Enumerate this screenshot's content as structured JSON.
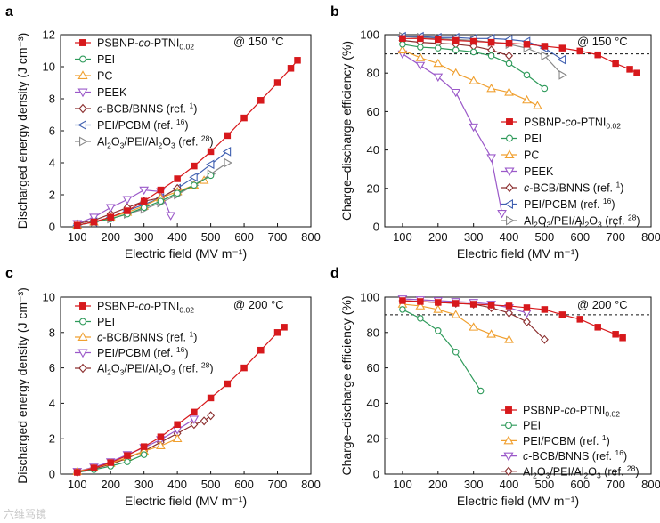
{
  "figure": {
    "watermark": "六维骂镜"
  },
  "colors": {
    "PSBNP": "#d7191c",
    "PEI": "#2e9a5a",
    "PC": "#f0a030",
    "PEEK": "#9b59c9",
    "cBCB": "#8b2e2e",
    "PEIPCBM": "#3f5fb0",
    "Al2O3": "#888888"
  },
  "chart_data": [
    {
      "id": "a",
      "panel_label": "a",
      "type": "line",
      "condition": "@ 150 °C",
      "xlabel": "Electric field (MV m⁻¹)",
      "ylabel": "Discharged energy density (J cm⁻³)",
      "xlim": [
        50,
        800
      ],
      "ylim": [
        0,
        12
      ],
      "xticks": [
        100,
        200,
        300,
        400,
        500,
        600,
        700,
        800
      ],
      "yticks": [
        0,
        2,
        4,
        6,
        8,
        10,
        12
      ],
      "series": [
        {
          "name": "PSBNP-co-PTNI0.02",
          "legend": {
            "prefix": "PSBNP-",
            "italic": "co",
            "mid": "-PTNI",
            "sub": "0.02"
          },
          "color": "#d7191c",
          "marker": "square",
          "filled": true,
          "x": [
            100,
            150,
            200,
            250,
            300,
            350,
            400,
            450,
            500,
            550,
            600,
            650,
            700,
            740,
            760
          ],
          "y": [
            0.1,
            0.3,
            0.6,
            1.0,
            1.6,
            2.3,
            3.0,
            3.8,
            4.7,
            5.7,
            6.8,
            7.9,
            9.0,
            9.9,
            10.4
          ]
        },
        {
          "name": "PEI",
          "legend": {
            "plain": "PEI"
          },
          "color": "#2e9a5a",
          "marker": "circle",
          "filled": false,
          "x": [
            100,
            150,
            200,
            250,
            300,
            350,
            400,
            450,
            500
          ],
          "y": [
            0.1,
            0.3,
            0.5,
            0.8,
            1.2,
            1.6,
            2.1,
            2.6,
            3.2
          ]
        },
        {
          "name": "PC",
          "legend": {
            "plain": "PC"
          },
          "color": "#f0a030",
          "marker": "triangle-up",
          "filled": false,
          "x": [
            100,
            150,
            200,
            250,
            300,
            350,
            400,
            450,
            480
          ],
          "y": [
            0.1,
            0.3,
            0.6,
            0.9,
            1.3,
            1.8,
            2.2,
            2.6,
            2.9
          ]
        },
        {
          "name": "PEEK",
          "legend": {
            "plain": "PEEK"
          },
          "color": "#9b59c9",
          "marker": "triangle-down",
          "filled": false,
          "x": [
            100,
            150,
            200,
            250,
            300,
            350,
            380
          ],
          "y": [
            0.2,
            0.6,
            1.2,
            1.7,
            2.3,
            2.2,
            0.7
          ]
        },
        {
          "name": "c-BCB/BNNS (ref. 1)",
          "legend": {
            "italic": "c",
            "mid": "-BCB/BNNS (ref. ",
            "sup": "1",
            "suffix": ")"
          },
          "color": "#8b2e2e",
          "marker": "diamond",
          "filled": false,
          "x": [
            100,
            150,
            200,
            250,
            300,
            350,
            400
          ],
          "y": [
            0.2,
            0.4,
            0.8,
            1.2,
            1.6,
            1.8,
            2.4
          ]
        },
        {
          "name": "PEI/PCBM (ref. 16)",
          "legend": {
            "plain": "PEI/PCBM (ref. ",
            "sup": "16",
            "suffix": ")"
          },
          "color": "#3f5fb0",
          "marker": "triangle-left",
          "filled": false,
          "x": [
            100,
            150,
            200,
            250,
            300,
            350,
            400,
            450,
            500,
            550
          ],
          "y": [
            0.1,
            0.3,
            0.6,
            1.0,
            1.4,
            1.8,
            2.4,
            3.1,
            3.9,
            4.7
          ]
        },
        {
          "name": "Al2O3/PEI/Al2O3 (ref. 28)",
          "legend": {
            "chem": true,
            "sup": "28"
          },
          "color": "#888888",
          "marker": "triangle-right",
          "filled": false,
          "x": [
            100,
            150,
            200,
            250,
            300,
            350,
            400,
            450,
            500,
            550
          ],
          "y": [
            0.1,
            0.3,
            0.5,
            0.8,
            1.1,
            1.5,
            2.0,
            2.6,
            3.3,
            4.0
          ]
        }
      ]
    },
    {
      "id": "b",
      "panel_label": "b",
      "type": "line",
      "condition": "@ 150 °C",
      "xlabel": "Electric field (MV m⁻¹)",
      "ylabel": "Charge–discharge efficiency (%)",
      "xlim": [
        50,
        800
      ],
      "ylim": [
        0,
        100
      ],
      "refline": 90,
      "xticks": [
        100,
        200,
        300,
        400,
        500,
        600,
        700,
        800
      ],
      "yticks": [
        0,
        20,
        40,
        60,
        80,
        100
      ],
      "series": [
        {
          "name": "PSBNP-co-PTNI0.02",
          "legend": {
            "prefix": "PSBNP-",
            "italic": "co",
            "mid": "-PTNI",
            "sub": "0.02"
          },
          "color": "#d7191c",
          "marker": "square",
          "filled": true,
          "x": [
            100,
            150,
            200,
            250,
            300,
            350,
            400,
            450,
            500,
            550,
            600,
            650,
            700,
            740,
            760
          ],
          "y": [
            98,
            98,
            97.5,
            97,
            96.5,
            96,
            95.5,
            95,
            94,
            93,
            91.5,
            89.5,
            85,
            82,
            80
          ]
        },
        {
          "name": "PEI",
          "legend": {
            "plain": "PEI"
          },
          "color": "#2e9a5a",
          "marker": "circle",
          "filled": false,
          "x": [
            100,
            150,
            200,
            250,
            300,
            350,
            400,
            450,
            500
          ],
          "y": [
            95,
            93.5,
            93,
            92,
            91,
            89,
            85,
            79,
            72
          ]
        },
        {
          "name": "PC",
          "legend": {
            "plain": "PC"
          },
          "color": "#f0a030",
          "marker": "triangle-up",
          "filled": false,
          "x": [
            100,
            150,
            200,
            250,
            300,
            350,
            400,
            450,
            480
          ],
          "y": [
            92,
            88,
            85,
            80,
            76,
            72,
            70,
            66,
            63
          ]
        },
        {
          "name": "PEEK",
          "legend": {
            "plain": "PEEK"
          },
          "color": "#9b59c9",
          "marker": "triangle-down",
          "filled": false,
          "x": [
            100,
            150,
            200,
            250,
            300,
            350,
            380
          ],
          "y": [
            90,
            84,
            78,
            70,
            52,
            36,
            7
          ]
        },
        {
          "name": "c-BCB/BNNS (ref. 1)",
          "legend": {
            "italic": "c",
            "mid": "-BCB/BNNS (ref. ",
            "sup": "1",
            "suffix": ")"
          },
          "color": "#8b2e2e",
          "marker": "diamond",
          "filled": false,
          "x": [
            100,
            150,
            200,
            250,
            300,
            350,
            400
          ],
          "y": [
            97,
            96,
            95.5,
            95,
            94,
            92,
            89
          ]
        },
        {
          "name": "PEI/PCBM (ref. 16)",
          "legend": {
            "plain": "PEI/PCBM (ref. ",
            "sup": "16",
            "suffix": ")"
          },
          "color": "#3f5fb0",
          "marker": "triangle-left",
          "filled": false,
          "x": [
            100,
            150,
            200,
            250,
            300,
            350,
            400,
            450,
            500,
            550
          ],
          "y": [
            99,
            99,
            98.5,
            98.5,
            98,
            98,
            97.5,
            96.5,
            93,
            87
          ]
        },
        {
          "name": "Al2O3/PEI/Al2O3 (ref. 28)",
          "legend": {
            "chem": true,
            "sup": "28"
          },
          "color": "#888888",
          "marker": "triangle-right",
          "filled": false,
          "x": [
            100,
            150,
            200,
            250,
            300,
            350,
            400,
            450,
            500,
            550
          ],
          "y": [
            99,
            98.5,
            98,
            97.5,
            97,
            96,
            95,
            93,
            89,
            79
          ]
        }
      ]
    },
    {
      "id": "c",
      "panel_label": "c",
      "type": "line",
      "condition": "@ 200 °C",
      "xlabel": "Electric field (MV m⁻¹)",
      "ylabel": "Discharged energy density (J cm⁻³)",
      "xlim": [
        50,
        800
      ],
      "ylim": [
        0,
        10
      ],
      "xticks": [
        100,
        200,
        300,
        400,
        500,
        600,
        700,
        800
      ],
      "yticks": [
        0,
        2,
        4,
        6,
        8,
        10
      ],
      "series": [
        {
          "name": "PSBNP-co-PTNI0.02",
          "legend": {
            "prefix": "PSBNP-",
            "italic": "co",
            "mid": "-PTNI",
            "sub": "0.02"
          },
          "color": "#d7191c",
          "marker": "square",
          "filled": true,
          "x": [
            100,
            150,
            200,
            250,
            300,
            350,
            400,
            450,
            500,
            550,
            600,
            650,
            700,
            720
          ],
          "y": [
            0.1,
            0.35,
            0.65,
            1.05,
            1.55,
            2.1,
            2.8,
            3.5,
            4.3,
            5.1,
            6.0,
            7.0,
            8.0,
            8.3
          ]
        },
        {
          "name": "PEI",
          "legend": {
            "plain": "PEI"
          },
          "color": "#2e9a5a",
          "marker": "circle",
          "filled": false,
          "x": [
            100,
            150,
            200,
            250,
            300
          ],
          "y": [
            0.1,
            0.25,
            0.45,
            0.7,
            1.1
          ]
        },
        {
          "name": "c-BCB/BNNS (ref. 1)",
          "legend": {
            "italic": "c",
            "mid": "-BCB/BNNS (ref. ",
            "sup": "1",
            "suffix": ")"
          },
          "color": "#f0a030",
          "marker": "triangle-up",
          "filled": false,
          "x": [
            100,
            150,
            200,
            250,
            300,
            350,
            400
          ],
          "y": [
            0.15,
            0.35,
            0.6,
            0.95,
            1.3,
            1.6,
            2.0
          ]
        },
        {
          "name": "PEI/PCBM (ref. 16)",
          "legend": {
            "plain": "PEI/PCBM (ref. ",
            "sup": "16",
            "suffix": ")"
          },
          "color": "#9b59c9",
          "marker": "triangle-down",
          "filled": false,
          "x": [
            100,
            150,
            200,
            250,
            300,
            350,
            400,
            450
          ],
          "y": [
            0.15,
            0.4,
            0.7,
            1.1,
            1.5,
            1.95,
            2.5,
            3.1
          ]
        },
        {
          "name": "Al2O3/PEI/Al2O3 (ref. 28)",
          "legend": {
            "chem": true,
            "sup": "28"
          },
          "color": "#8b2e2e",
          "marker": "diamond",
          "filled": false,
          "x": [
            100,
            150,
            200,
            250,
            300,
            350,
            400,
            450,
            480,
            500
          ],
          "y": [
            0.1,
            0.3,
            0.55,
            0.9,
            1.3,
            1.8,
            2.3,
            2.8,
            3.0,
            3.3
          ]
        }
      ]
    },
    {
      "id": "d",
      "panel_label": "d",
      "type": "line",
      "condition": "@ 200 °C",
      "xlabel": "Electric field (MV m⁻¹)",
      "ylabel": "Charge–discharge efficiency (%)",
      "xlim": [
        50,
        800
      ],
      "ylim": [
        0,
        100
      ],
      "refline": 90,
      "xticks": [
        100,
        200,
        300,
        400,
        500,
        600,
        700,
        800
      ],
      "yticks": [
        0,
        20,
        40,
        60,
        80,
        100
      ],
      "series": [
        {
          "name": "PSBNP-co-PTNI0.02",
          "legend": {
            "prefix": "PSBNP-",
            "italic": "co",
            "mid": "-PTNI",
            "sub": "0.02"
          },
          "color": "#d7191c",
          "marker": "square",
          "filled": true,
          "x": [
            100,
            150,
            200,
            250,
            300,
            350,
            400,
            450,
            500,
            550,
            600,
            650,
            700,
            720
          ],
          "y": [
            98,
            97.5,
            97,
            96.5,
            96,
            95.5,
            95,
            94,
            93,
            90,
            87.5,
            83,
            79,
            77
          ]
        },
        {
          "name": "PEI",
          "legend": {
            "plain": "PEI"
          },
          "color": "#2e9a5a",
          "marker": "circle",
          "filled": false,
          "x": [
            100,
            150,
            200,
            250,
            320
          ],
          "y": [
            93,
            88,
            81,
            69,
            47
          ]
        },
        {
          "name": "PEI/PCBM (ref. 1)",
          "legend": {
            "plain": "PEI/PCBM (ref. ",
            "sup": "1",
            "suffix": ")"
          },
          "color": "#f0a030",
          "marker": "triangle-up",
          "filled": false,
          "x": [
            100,
            150,
            200,
            250,
            300,
            350,
            400
          ],
          "y": [
            96,
            95,
            93,
            90,
            83,
            79,
            76
          ]
        },
        {
          "name": "c-BCB/BNNS (ref. 16)",
          "legend": {
            "italic": "c",
            "mid": "-BCB/BNNS (ref. ",
            "sup": "16",
            "suffix": ")"
          },
          "color": "#9b59c9",
          "marker": "triangle-down",
          "filled": false,
          "x": [
            100,
            150,
            200,
            250,
            300,
            350,
            400,
            450
          ],
          "y": [
            99,
            98.5,
            98,
            97.5,
            97,
            96,
            94,
            91
          ]
        },
        {
          "name": "Al2O3/PEI/Al2O3 (ref. 28)",
          "legend": {
            "chem": true,
            "sup": "28"
          },
          "color": "#8b2e2e",
          "marker": "diamond",
          "filled": false,
          "x": [
            100,
            150,
            200,
            250,
            300,
            350,
            400,
            450,
            500
          ],
          "y": [
            98,
            97.5,
            97,
            96.5,
            96,
            94,
            91,
            86,
            76
          ]
        }
      ]
    }
  ]
}
